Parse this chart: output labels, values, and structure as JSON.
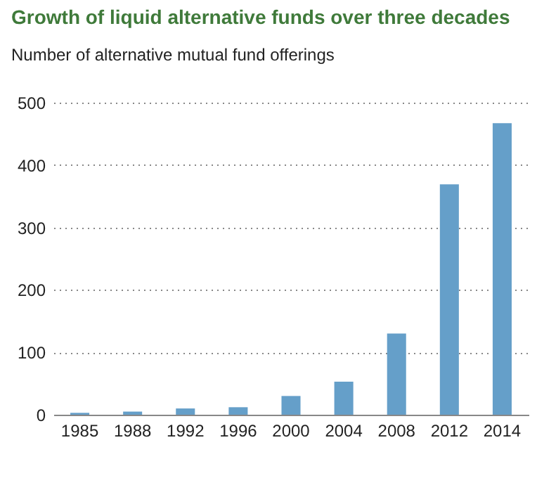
{
  "chart_data": {
    "type": "bar",
    "title": "Growth of liquid alternative funds over three decades",
    "subtitle": "Number of alternative mutual fund offerings",
    "categories": [
      "1985",
      "1988",
      "1992",
      "1996",
      "2000",
      "2004",
      "2008",
      "2012",
      "2014"
    ],
    "values": [
      3,
      5,
      10,
      12,
      30,
      53,
      130,
      369,
      467
    ],
    "color": "#659fc9",
    "ylim": [
      0,
      500
    ],
    "yticks": [
      0,
      100,
      200,
      300,
      400,
      500
    ],
    "grid": "y"
  }
}
